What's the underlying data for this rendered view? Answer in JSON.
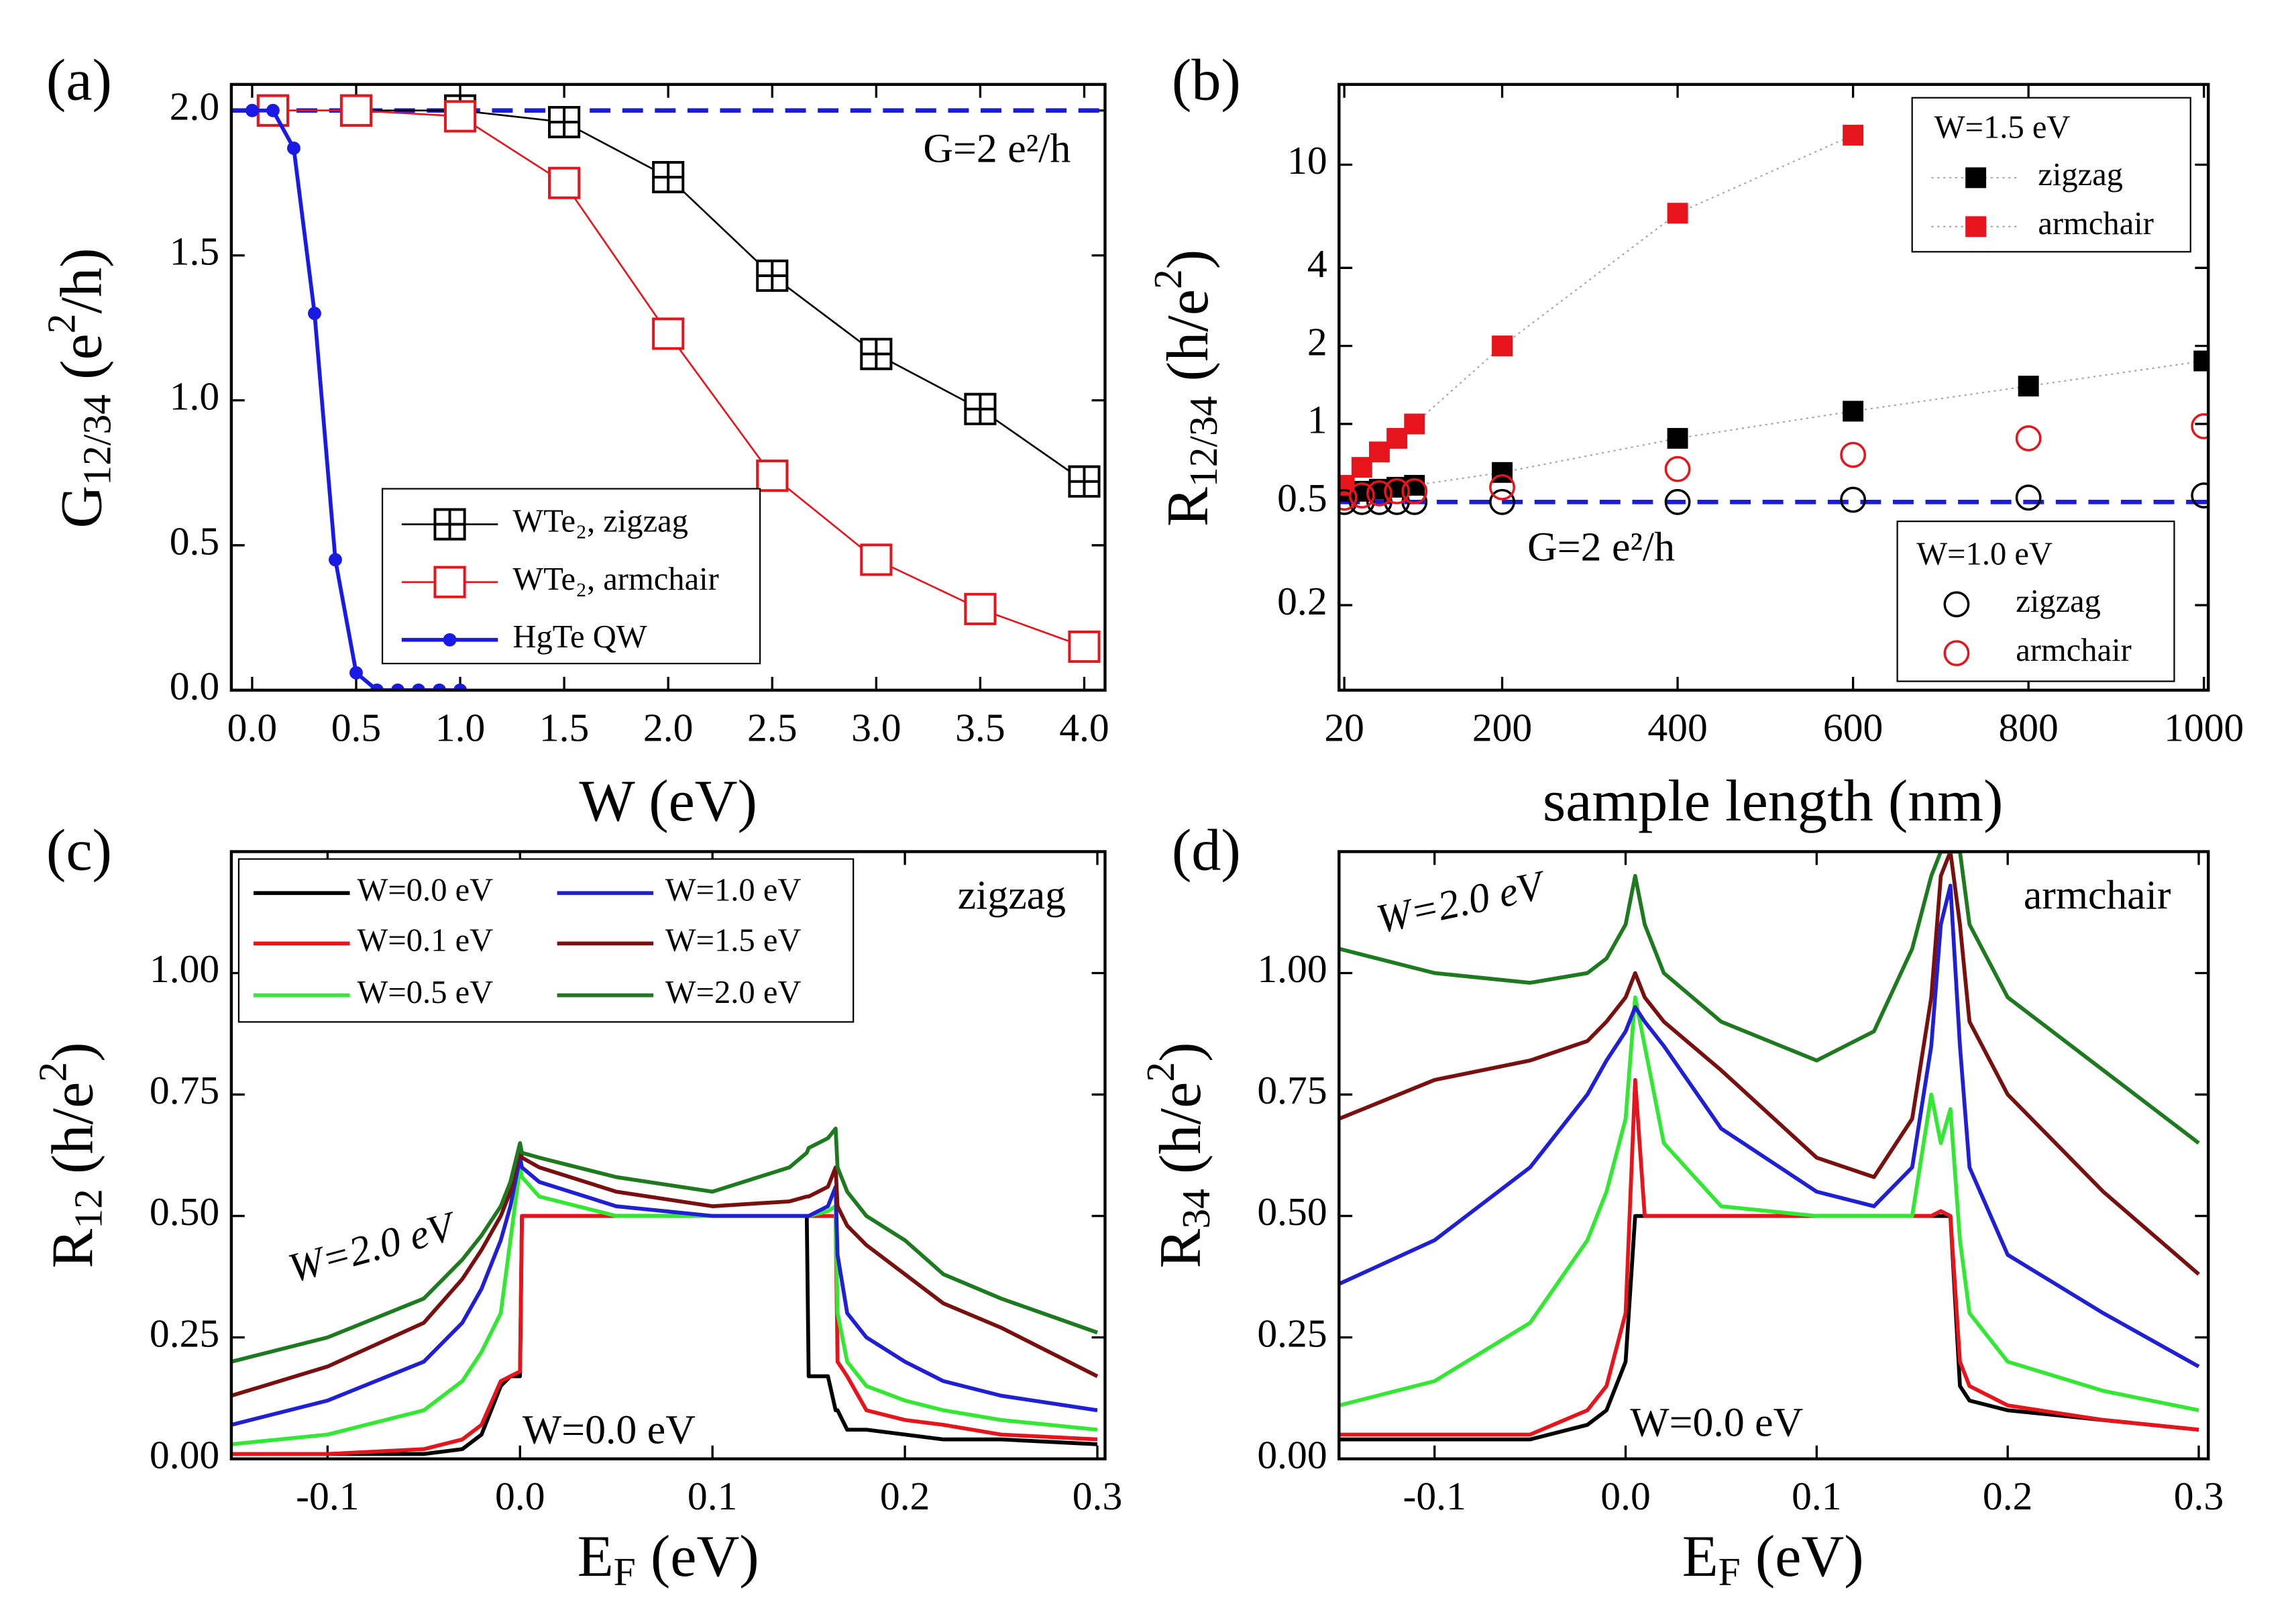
{
  "chart_data": [
    {
      "type": "line",
      "panel_label": "(a)",
      "xlabel": [
        {
          "text": "W (eV)"
        }
      ],
      "ylabel": [
        {
          "text": "G"
        },
        {
          "text": "12/34",
          "shift": "sub"
        },
        {
          "text": " (e"
        },
        {
          "text": "2",
          "shift": "sup"
        },
        {
          "text": "/h)"
        }
      ],
      "xlim": [
        -0.1,
        4.1
      ],
      "ylim": [
        0,
        2.09
      ],
      "xticks": [
        {
          "value": 0,
          "label": "0.0"
        },
        0.5,
        {
          "value": 1,
          "label": "1.0"
        },
        1.5,
        {
          "value": 2,
          "label": "2.0"
        },
        2.5,
        {
          "value": 3,
          "label": "3.0"
        },
        3.5,
        {
          "value": 4,
          "label": "4.0"
        }
      ],
      "yticks": [
        {
          "value": 0,
          "label": "0.0"
        },
        0.5,
        {
          "value": 1,
          "label": "1.0"
        },
        1.5,
        {
          "value": 2,
          "label": "2.0"
        }
      ],
      "hline": 2,
      "hline_color": "#1a1ae6",
      "annotations": [
        {
          "text": "G=2 e²/h",
          "color": "#1a1ae6"
        }
      ],
      "series": [
        {
          "name": "WTe₂, zigzag",
          "color": "#000000",
          "marker": "square-plus",
          "line": "solid",
          "x": [
            0.1,
            0.5,
            1.0,
            1.5,
            2.0,
            2.5,
            3.0,
            3.5,
            4.0
          ],
          "values": [
            2.0,
            2.0,
            2.0,
            1.96,
            1.77,
            1.43,
            1.16,
            0.97,
            0.72
          ]
        },
        {
          "name": "WTe₂, armchair",
          "color": "#e8141b",
          "marker": "square-open",
          "line": "solid",
          "x": [
            0.1,
            0.5,
            1.0,
            1.5,
            2.0,
            2.5,
            3.0,
            3.5,
            4.0
          ],
          "values": [
            2.0,
            2.0,
            1.98,
            1.75,
            1.23,
            0.74,
            0.45,
            0.28,
            0.15
          ]
        },
        {
          "name": "HgTe QW",
          "color": "#1a1ae6",
          "marker": "circle-filled",
          "line": "thick",
          "x": [
            0,
            0.1,
            0.2,
            0.3,
            0.4,
            0.5,
            0.6,
            0.7,
            0.8,
            0.9,
            1.0
          ],
          "values": [
            2.0,
            2.0,
            1.87,
            1.3,
            0.45,
            0.06,
            0,
            0,
            0,
            0,
            0
          ]
        }
      ]
    },
    {
      "type": "scatter",
      "panel_label": "(b)",
      "ylog": true,
      "xlabel": [
        {
          "text": "sample length (nm)"
        }
      ],
      "ylabel": [
        {
          "text": "R"
        },
        {
          "text": "12/34",
          "shift": "sub"
        },
        {
          "text": " (h/e"
        },
        {
          "text": "2",
          "shift": "sup"
        },
        {
          "text": ")"
        }
      ],
      "xlim": [
        14,
        1005
      ],
      "ylim": [
        0.094,
        20.4
      ],
      "xticks": [
        20,
        200,
        400,
        600,
        800,
        1000
      ],
      "yticks": [
        0.2,
        0.5,
        1,
        2,
        4,
        10
      ],
      "hline": 0.5,
      "hline_color": "#1a1ae6",
      "annotations": [
        {
          "text": "G=2 e²/h",
          "color": "#1a1ae6"
        }
      ],
      "legend_titles": [
        "W=1.5 eV",
        "W=1.0 eV"
      ],
      "series": [
        {
          "name": "zigzag",
          "legend": 0,
          "color": "#000000",
          "marker": "square-filled",
          "line": "dotted",
          "x": [
            20,
            40,
            60,
            80,
            100,
            200,
            400,
            600,
            800,
            1000
          ],
          "values": [
            0.55,
            0.55,
            0.56,
            0.57,
            0.58,
            0.65,
            0.88,
            1.12,
            1.4,
            1.75
          ]
        },
        {
          "name": "armchair",
          "legend": 0,
          "color": "#e8141b",
          "marker": "square-filled",
          "line": "dotted",
          "x": [
            20,
            40,
            60,
            80,
            100,
            200,
            400,
            600
          ],
          "values": [
            0.58,
            0.68,
            0.78,
            0.88,
            1.0,
            2.0,
            6.5,
            13.0
          ]
        },
        {
          "name": "zigzag",
          "legend": 1,
          "color": "#000000",
          "marker": "circle-open",
          "line": "none",
          "x": [
            20,
            40,
            60,
            80,
            100,
            200,
            400,
            600,
            800,
            1000
          ],
          "values": [
            0.5,
            0.5,
            0.5,
            0.5,
            0.5,
            0.5,
            0.5,
            0.51,
            0.52,
            0.53
          ]
        },
        {
          "name": "armchair",
          "legend": 1,
          "color": "#e8141b",
          "marker": "circle-open",
          "line": "none",
          "x": [
            20,
            40,
            60,
            80,
            100,
            200,
            400,
            600,
            800,
            1000
          ],
          "values": [
            0.52,
            0.53,
            0.54,
            0.55,
            0.55,
            0.57,
            0.67,
            0.76,
            0.88,
            0.98
          ]
        }
      ]
    },
    {
      "type": "line",
      "panel_label": "(c)",
      "xlabel": [
        {
          "text": "E"
        },
        {
          "text": "F",
          "shift": "sub"
        },
        {
          "text": " (eV)"
        }
      ],
      "ylabel": [
        {
          "text": "R"
        },
        {
          "text": "12",
          "shift": "sub"
        },
        {
          "text": " (h/e"
        },
        {
          "text": "2",
          "shift": "sup"
        },
        {
          "text": ")"
        }
      ],
      "xlim": [
        -0.15,
        0.304
      ],
      "ylim": [
        0,
        1.25
      ],
      "xticks": [
        -0.1,
        {
          "value": 0,
          "label": "0.0"
        },
        0.1,
        0.2,
        0.3
      ],
      "yticks": [
        {
          "value": 0,
          "label": "0.00"
        },
        {
          "value": 0.25,
          "label": "0.25"
        },
        {
          "value": 0.5,
          "label": "0.50"
        },
        {
          "value": 0.75,
          "label": "0.75"
        },
        {
          "value": 1,
          "label": "1.00"
        }
      ],
      "annotations": [
        {
          "text": "zigzag",
          "color": "#000000"
        },
        {
          "text": "W=2.0 eV",
          "color": "#1e7a1e"
        },
        {
          "text": "W=0.0 eV",
          "color": "#000000"
        }
      ],
      "x": [
        -0.15,
        -0.1,
        -0.05,
        -0.03,
        -0.02,
        -0.01,
        -0.005,
        0,
        0.001,
        0.01,
        0.05,
        0.1,
        0.14,
        0.149,
        0.15,
        0.16,
        0.164,
        0.165,
        0.17,
        0.18,
        0.2,
        0.22,
        0.25,
        0.3
      ],
      "series": [
        {
          "name": "W=0.0 eV",
          "color": "#000000",
          "line": "thick",
          "values": [
            0.01,
            0.01,
            0.01,
            0.02,
            0.05,
            0.15,
            0.17,
            0.17,
            0.5,
            0.5,
            0.5,
            0.5,
            0.5,
            0.5,
            0.17,
            0.17,
            0.1,
            0.1,
            0.06,
            0.06,
            0.05,
            0.04,
            0.04,
            0.03
          ]
        },
        {
          "name": "W=0.1 eV",
          "color": "#e8141b",
          "line": "thick",
          "values": [
            0.01,
            0.01,
            0.02,
            0.04,
            0.07,
            0.16,
            0.17,
            0.18,
            0.5,
            0.5,
            0.5,
            0.5,
            0.5,
            0.5,
            0.5,
            0.5,
            0.5,
            0.2,
            0.17,
            0.1,
            0.08,
            0.07,
            0.05,
            0.04
          ]
        },
        {
          "name": "W=0.5 eV",
          "color": "#33e833",
          "line": "thick",
          "values": [
            0.03,
            0.05,
            0.1,
            0.16,
            0.22,
            0.3,
            0.45,
            0.6,
            0.58,
            0.54,
            0.5,
            0.5,
            0.5,
            0.5,
            0.5,
            0.51,
            0.52,
            0.3,
            0.2,
            0.15,
            0.12,
            0.1,
            0.08,
            0.06
          ]
        },
        {
          "name": "W=1.0 eV",
          "color": "#1f1fd6",
          "line": "thick",
          "values": [
            0.07,
            0.12,
            0.2,
            0.28,
            0.35,
            0.45,
            0.52,
            0.62,
            0.6,
            0.57,
            0.52,
            0.5,
            0.5,
            0.5,
            0.5,
            0.52,
            0.56,
            0.42,
            0.3,
            0.25,
            0.2,
            0.16,
            0.13,
            0.1
          ]
        },
        {
          "name": "W=1.5 eV",
          "color": "#7a0f0f",
          "line": "thick",
          "values": [
            0.13,
            0.19,
            0.28,
            0.37,
            0.43,
            0.5,
            0.55,
            0.64,
            0.62,
            0.6,
            0.55,
            0.52,
            0.53,
            0.54,
            0.54,
            0.56,
            0.6,
            0.52,
            0.48,
            0.44,
            0.38,
            0.32,
            0.27,
            0.17
          ]
        },
        {
          "name": "W=2.0 eV",
          "color": "#1e7a1e",
          "line": "thick",
          "values": [
            0.2,
            0.25,
            0.33,
            0.41,
            0.46,
            0.52,
            0.57,
            0.65,
            0.63,
            0.62,
            0.58,
            0.55,
            0.6,
            0.63,
            0.64,
            0.66,
            0.68,
            0.6,
            0.55,
            0.5,
            0.45,
            0.38,
            0.33,
            0.26
          ]
        }
      ]
    },
    {
      "type": "line",
      "panel_label": "(d)",
      "xlabel": [
        {
          "text": "E"
        },
        {
          "text": "F",
          "shift": "sub"
        },
        {
          "text": " (eV)"
        }
      ],
      "ylabel": [
        {
          "text": "R"
        },
        {
          "text": "34",
          "shift": "sub"
        },
        {
          "text": " (h/e"
        },
        {
          "text": "2",
          "shift": "sup"
        },
        {
          "text": ")"
        }
      ],
      "xlim": [
        -0.15,
        0.305
      ],
      "ylim": [
        0,
        1.25
      ],
      "xticks": [
        -0.1,
        {
          "value": 0,
          "label": "0.0"
        },
        0.1,
        0.2,
        0.3
      ],
      "yticks": [
        {
          "value": 0,
          "label": "0.00"
        },
        {
          "value": 0.25,
          "label": "0.25"
        },
        {
          "value": 0.5,
          "label": "0.50"
        },
        {
          "value": 0.75,
          "label": "0.75"
        },
        {
          "value": 1,
          "label": "1.00"
        }
      ],
      "annotations": [
        {
          "text": "armchair",
          "color": "#000000"
        },
        {
          "text": "W=2.0 eV",
          "color": "#1e7a1e"
        },
        {
          "text": "W=0.0 eV",
          "color": "#000000"
        }
      ],
      "x": [
        -0.15,
        -0.1,
        -0.05,
        -0.02,
        -0.01,
        0,
        0.005,
        0.01,
        0.02,
        0.05,
        0.1,
        0.13,
        0.15,
        0.16,
        0.165,
        0.17,
        0.175,
        0.18,
        0.2,
        0.25,
        0.3
      ],
      "series": [
        {
          "color": "#000000",
          "line": "thick",
          "values": [
            0.04,
            0.04,
            0.04,
            0.07,
            0.1,
            0.2,
            0.5,
            0.5,
            0.5,
            0.5,
            0.5,
            0.5,
            0.5,
            0.5,
            0.5,
            0.5,
            0.15,
            0.12,
            0.1,
            0.08,
            0.06
          ]
        },
        {
          "color": "#e8141b",
          "line": "thick",
          "values": [
            0.05,
            0.05,
            0.05,
            0.1,
            0.15,
            0.3,
            0.78,
            0.5,
            0.5,
            0.5,
            0.5,
            0.5,
            0.5,
            0.5,
            0.51,
            0.5,
            0.2,
            0.15,
            0.11,
            0.08,
            0.06
          ]
        },
        {
          "color": "#33e833",
          "line": "thick",
          "values": [
            0.11,
            0.16,
            0.28,
            0.45,
            0.55,
            0.7,
            0.95,
            0.85,
            0.65,
            0.52,
            0.5,
            0.5,
            0.5,
            0.75,
            0.65,
            0.72,
            0.45,
            0.3,
            0.2,
            0.14,
            0.1
          ]
        },
        {
          "color": "#1f1fd6",
          "line": "thick",
          "values": [
            0.36,
            0.45,
            0.6,
            0.75,
            0.82,
            0.88,
            0.93,
            0.9,
            0.85,
            0.68,
            0.55,
            0.52,
            0.6,
            0.85,
            1.1,
            1.18,
            0.85,
            0.6,
            0.42,
            0.3,
            0.19
          ]
        },
        {
          "color": "#7a0f0f",
          "line": "thick",
          "values": [
            0.7,
            0.78,
            0.82,
            0.86,
            0.9,
            0.95,
            1.0,
            0.95,
            0.9,
            0.8,
            0.62,
            0.58,
            0.7,
            0.95,
            1.2,
            1.25,
            1.1,
            0.9,
            0.75,
            0.55,
            0.38
          ]
        },
        {
          "color": "#1e7a1e",
          "line": "thick",
          "values": [
            1.05,
            1.0,
            0.98,
            1.0,
            1.03,
            1.1,
            1.2,
            1.1,
            1.0,
            0.9,
            0.82,
            0.88,
            1.05,
            1.2,
            1.25,
            1.25,
            1.25,
            1.1,
            0.95,
            0.8,
            0.65
          ]
        }
      ]
    }
  ]
}
